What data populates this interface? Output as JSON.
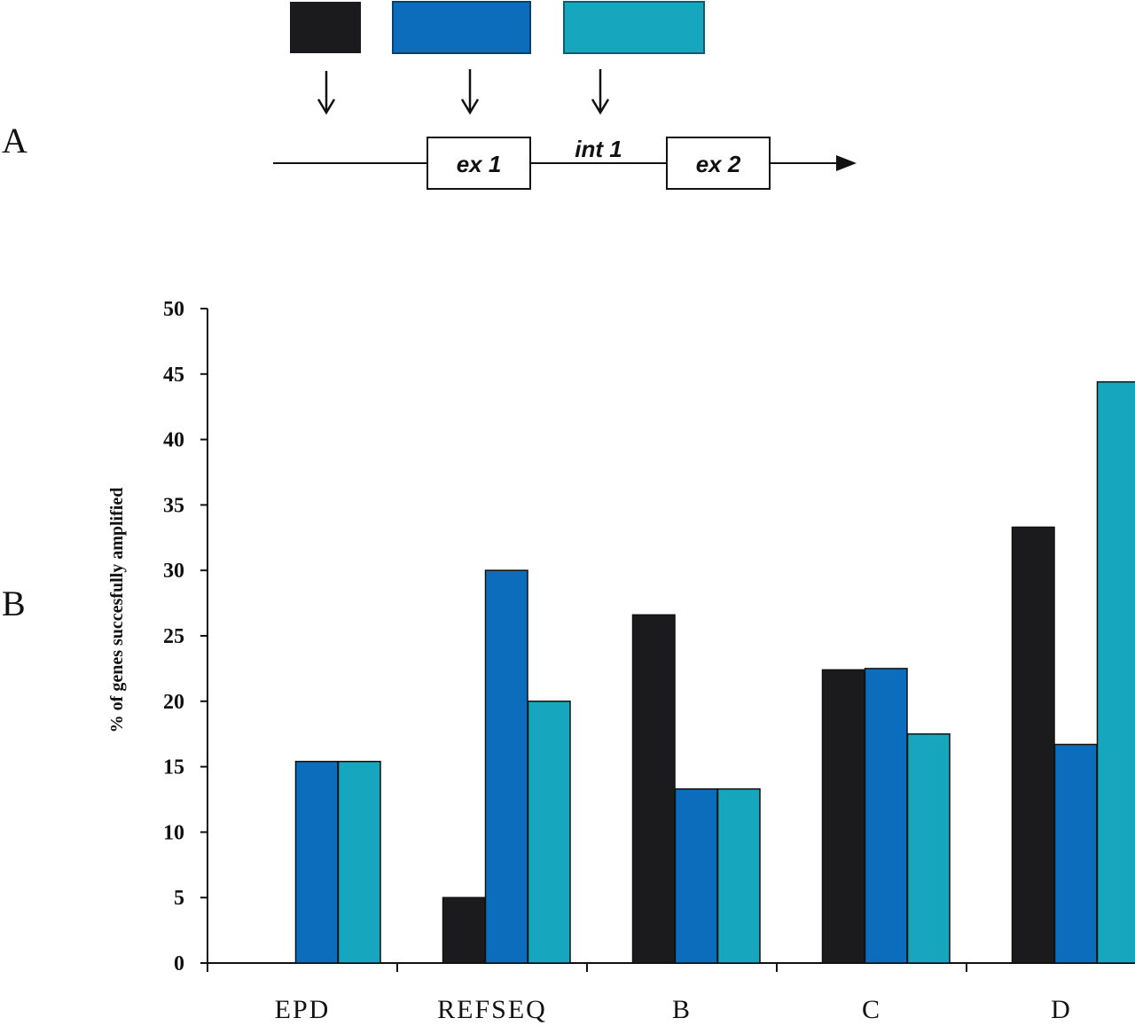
{
  "panel_labels": {
    "a": "A",
    "b": "B"
  },
  "schematic": {
    "exon1_label": "ex 1",
    "intron_label": "int 1",
    "exon2_label": "ex 2"
  },
  "colors": {
    "series_black": "#1b1a1c",
    "series_blue": "#0d6dbd",
    "series_cyan": "#16a7bf"
  },
  "chart_data": {
    "type": "bar",
    "title": "",
    "xlabel": "",
    "ylabel": "% of genes succesfully amplified",
    "ylim": [
      0,
      50
    ],
    "yticks": [
      0,
      5,
      10,
      15,
      20,
      25,
      30,
      35,
      40,
      45,
      50
    ],
    "categories": [
      "EPD",
      "REFSEQ",
      "B",
      "C",
      "D"
    ],
    "grid": false,
    "legend": "none",
    "series": [
      {
        "color": "#1b1a1c",
        "values": [
          0,
          5,
          26.6,
          22.4,
          33.3
        ]
      },
      {
        "color": "#0d6dbd",
        "values": [
          15.4,
          30,
          13.3,
          22.5,
          16.7
        ]
      },
      {
        "color": "#16a7bf",
        "values": [
          15.4,
          20,
          13.3,
          17.5,
          44.4
        ]
      }
    ]
  }
}
